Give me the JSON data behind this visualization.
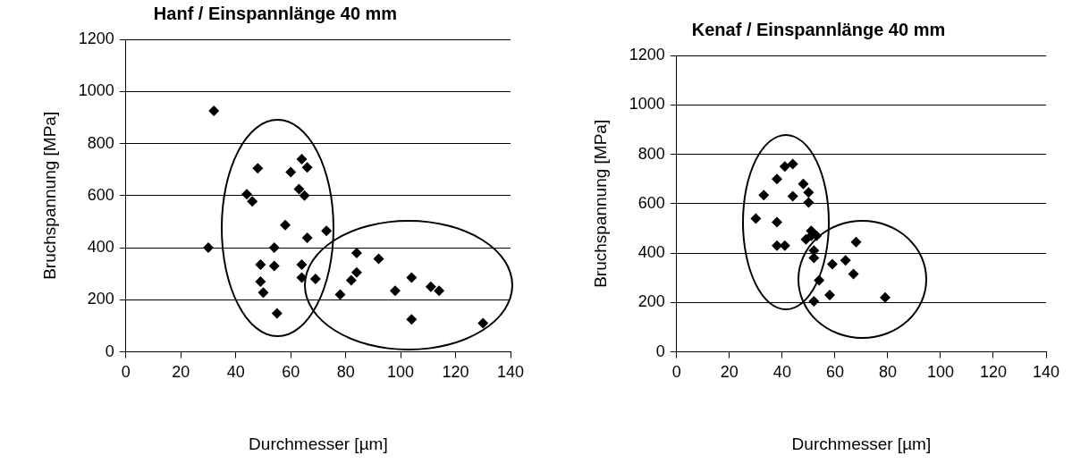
{
  "chart_data": [
    {
      "type": "scatter",
      "title": "Hanf / Einspannlänge 40 mm",
      "xlabel": "Durchmesser [µm]",
      "ylabel": "Bruchspannung [MPa]",
      "xlim": [
        0,
        140
      ],
      "xticks": [
        0,
        20,
        40,
        60,
        80,
        100,
        120,
        140
      ],
      "ylim": [
        0,
        1200
      ],
      "yticks": [
        0,
        200,
        400,
        600,
        800,
        1000,
        1200
      ],
      "grid": "y",
      "legend": false,
      "marker": "diamond",
      "series": [
        {
          "color": "#000000",
          "x": [
            30,
            32,
            44,
            46,
            48,
            49,
            49,
            50,
            54,
            55,
            54,
            58,
            60,
            64,
            63,
            65,
            64,
            66,
            66,
            64,
            69,
            73,
            78,
            82,
            84,
            84,
            92,
            98,
            104,
            104,
            111,
            114,
            130
          ],
          "values": [
            400,
            925,
            605,
            578,
            705,
            335,
            270,
            228,
            400,
            148,
            330,
            487,
            690,
            740,
            625,
            600,
            335,
            708,
            438,
            285,
            280,
            465,
            220,
            275,
            305,
            380,
            357,
            235,
            285,
            125,
            250,
            235,
            110
          ]
        }
      ]
    },
    {
      "type": "scatter",
      "title": "Kenaf / Einspannlänge 40 mm",
      "xlabel": "Durchmesser [µm]",
      "ylabel": "Bruchspannung [MPa]",
      "xlim": [
        0,
        140
      ],
      "xticks": [
        0,
        20,
        40,
        60,
        80,
        100,
        120,
        140
      ],
      "ylim": [
        0,
        1200
      ],
      "yticks": [
        0,
        200,
        400,
        600,
        800,
        1000,
        1200
      ],
      "grid": "y",
      "legend": false,
      "marker": "diamond",
      "series": [
        {
          "color": "#000000",
          "x": [
            30,
            33,
            38,
            38,
            38,
            41,
            41,
            44,
            44,
            48,
            49,
            50,
            50,
            51,
            51,
            52,
            52,
            53,
            52,
            54,
            58,
            59,
            64,
            67,
            68,
            79
          ],
          "values": [
            540,
            635,
            700,
            525,
            430,
            430,
            750,
            760,
            630,
            680,
            455,
            605,
            645,
            490,
            470,
            380,
            410,
            470,
            205,
            290,
            230,
            355,
            370,
            315,
            445,
            220
          ]
        }
      ]
    }
  ]
}
